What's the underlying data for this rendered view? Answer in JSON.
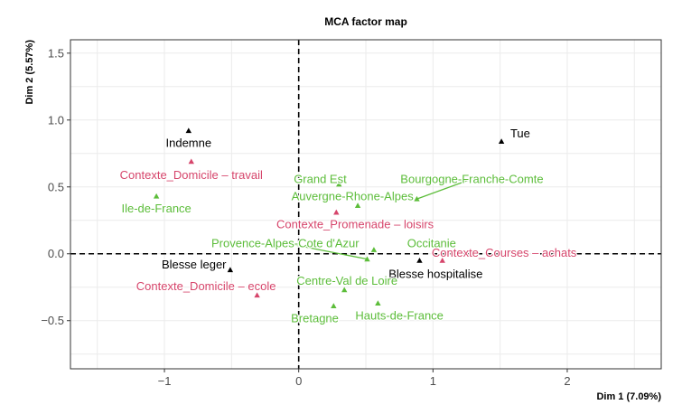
{
  "chart_data": {
    "type": "scatter",
    "title": "MCA factor map",
    "xlabel": "Dim 1 (7.09%)",
    "ylabel": "Dim 2 (5.57%)",
    "xlim": [
      -1.7,
      2.7
    ],
    "ylim": [
      -0.86,
      1.6
    ],
    "xticks": [
      -1,
      0,
      1,
      2
    ],
    "xtick_labels": [
      "−1",
      "0",
      "1",
      "2"
    ],
    "yticks": [
      -0.5,
      0.0,
      0.5,
      1.0,
      1.5
    ],
    "ytick_labels": [
      "−0.5",
      "0.0",
      "0.5",
      "1.0",
      "1.5"
    ],
    "grid": true,
    "legend": "none",
    "reference_lines": {
      "x": 0,
      "y": 0,
      "style": "dashed"
    },
    "colors": {
      "black": "#000000",
      "pink": "#d6456b",
      "green": "#5cbd3a"
    },
    "points": [
      {
        "label": "Indemne",
        "x": -0.82,
        "y": 0.92,
        "color": "black",
        "lx": -0.82,
        "ly": 0.83
      },
      {
        "label": "Tue",
        "x": 1.51,
        "y": 0.84,
        "color": "black",
        "lx": 1.65,
        "ly": 0.9
      },
      {
        "label": "Blesse leger",
        "x": -0.51,
        "y": -0.12,
        "color": "black",
        "lx": -0.78,
        "ly": -0.08
      },
      {
        "label": "Blesse hospitalise",
        "x": 0.9,
        "y": -0.05,
        "color": "black",
        "lx": 1.02,
        "ly": -0.15
      },
      {
        "label": "Contexte_Domicile – travail",
        "x": -0.8,
        "y": 0.69,
        "color": "pink",
        "lx": -0.8,
        "ly": 0.59
      },
      {
        "label": "Contexte_Promenade – loisirs",
        "x": 0.28,
        "y": 0.31,
        "color": "pink",
        "lx": 0.42,
        "ly": 0.22
      },
      {
        "label": "Contexte_Courses – achats",
        "x": 1.07,
        "y": -0.05,
        "color": "pink",
        "lx": 1.53,
        "ly": 0.01
      },
      {
        "label": "Contexte_Domicile – ecole",
        "x": -0.31,
        "y": -0.31,
        "color": "pink",
        "lx": -0.69,
        "ly": -0.24
      },
      {
        "label": "Ile-de-France",
        "x": -1.06,
        "y": 0.43,
        "color": "green",
        "lx": -1.06,
        "ly": 0.34
      },
      {
        "label": "Grand Est",
        "x": 0.3,
        "y": 0.52,
        "color": "green",
        "lx": 0.16,
        "ly": 0.56
      },
      {
        "label": "Auvergne-Rhone-Alpes",
        "x": 0.44,
        "y": 0.36,
        "color": "green",
        "lx": 0.4,
        "ly": 0.43
      },
      {
        "label": "Bourgogne-Franche-Comte",
        "x": 0.88,
        "y": 0.41,
        "color": "green",
        "lx": 1.29,
        "ly": 0.56,
        "leader": true
      },
      {
        "label": "Provence-Alpes-Cote d'Azur",
        "x": 0.51,
        "y": -0.04,
        "color": "green",
        "lx": -0.1,
        "ly": 0.08,
        "leader": true
      },
      {
        "label": "Occitanie",
        "x": 0.56,
        "y": 0.03,
        "color": "green",
        "lx": 0.99,
        "ly": 0.08
      },
      {
        "label": "Centre-Val de Loire",
        "x": 0.34,
        "y": -0.27,
        "color": "green",
        "lx": 0.36,
        "ly": -0.2
      },
      {
        "label": "Bretagne",
        "x": 0.26,
        "y": -0.39,
        "color": "green",
        "lx": 0.12,
        "ly": -0.48
      },
      {
        "label": "Hauts-de-France",
        "x": 0.59,
        "y": -0.37,
        "color": "green",
        "lx": 0.75,
        "ly": -0.46
      }
    ]
  }
}
